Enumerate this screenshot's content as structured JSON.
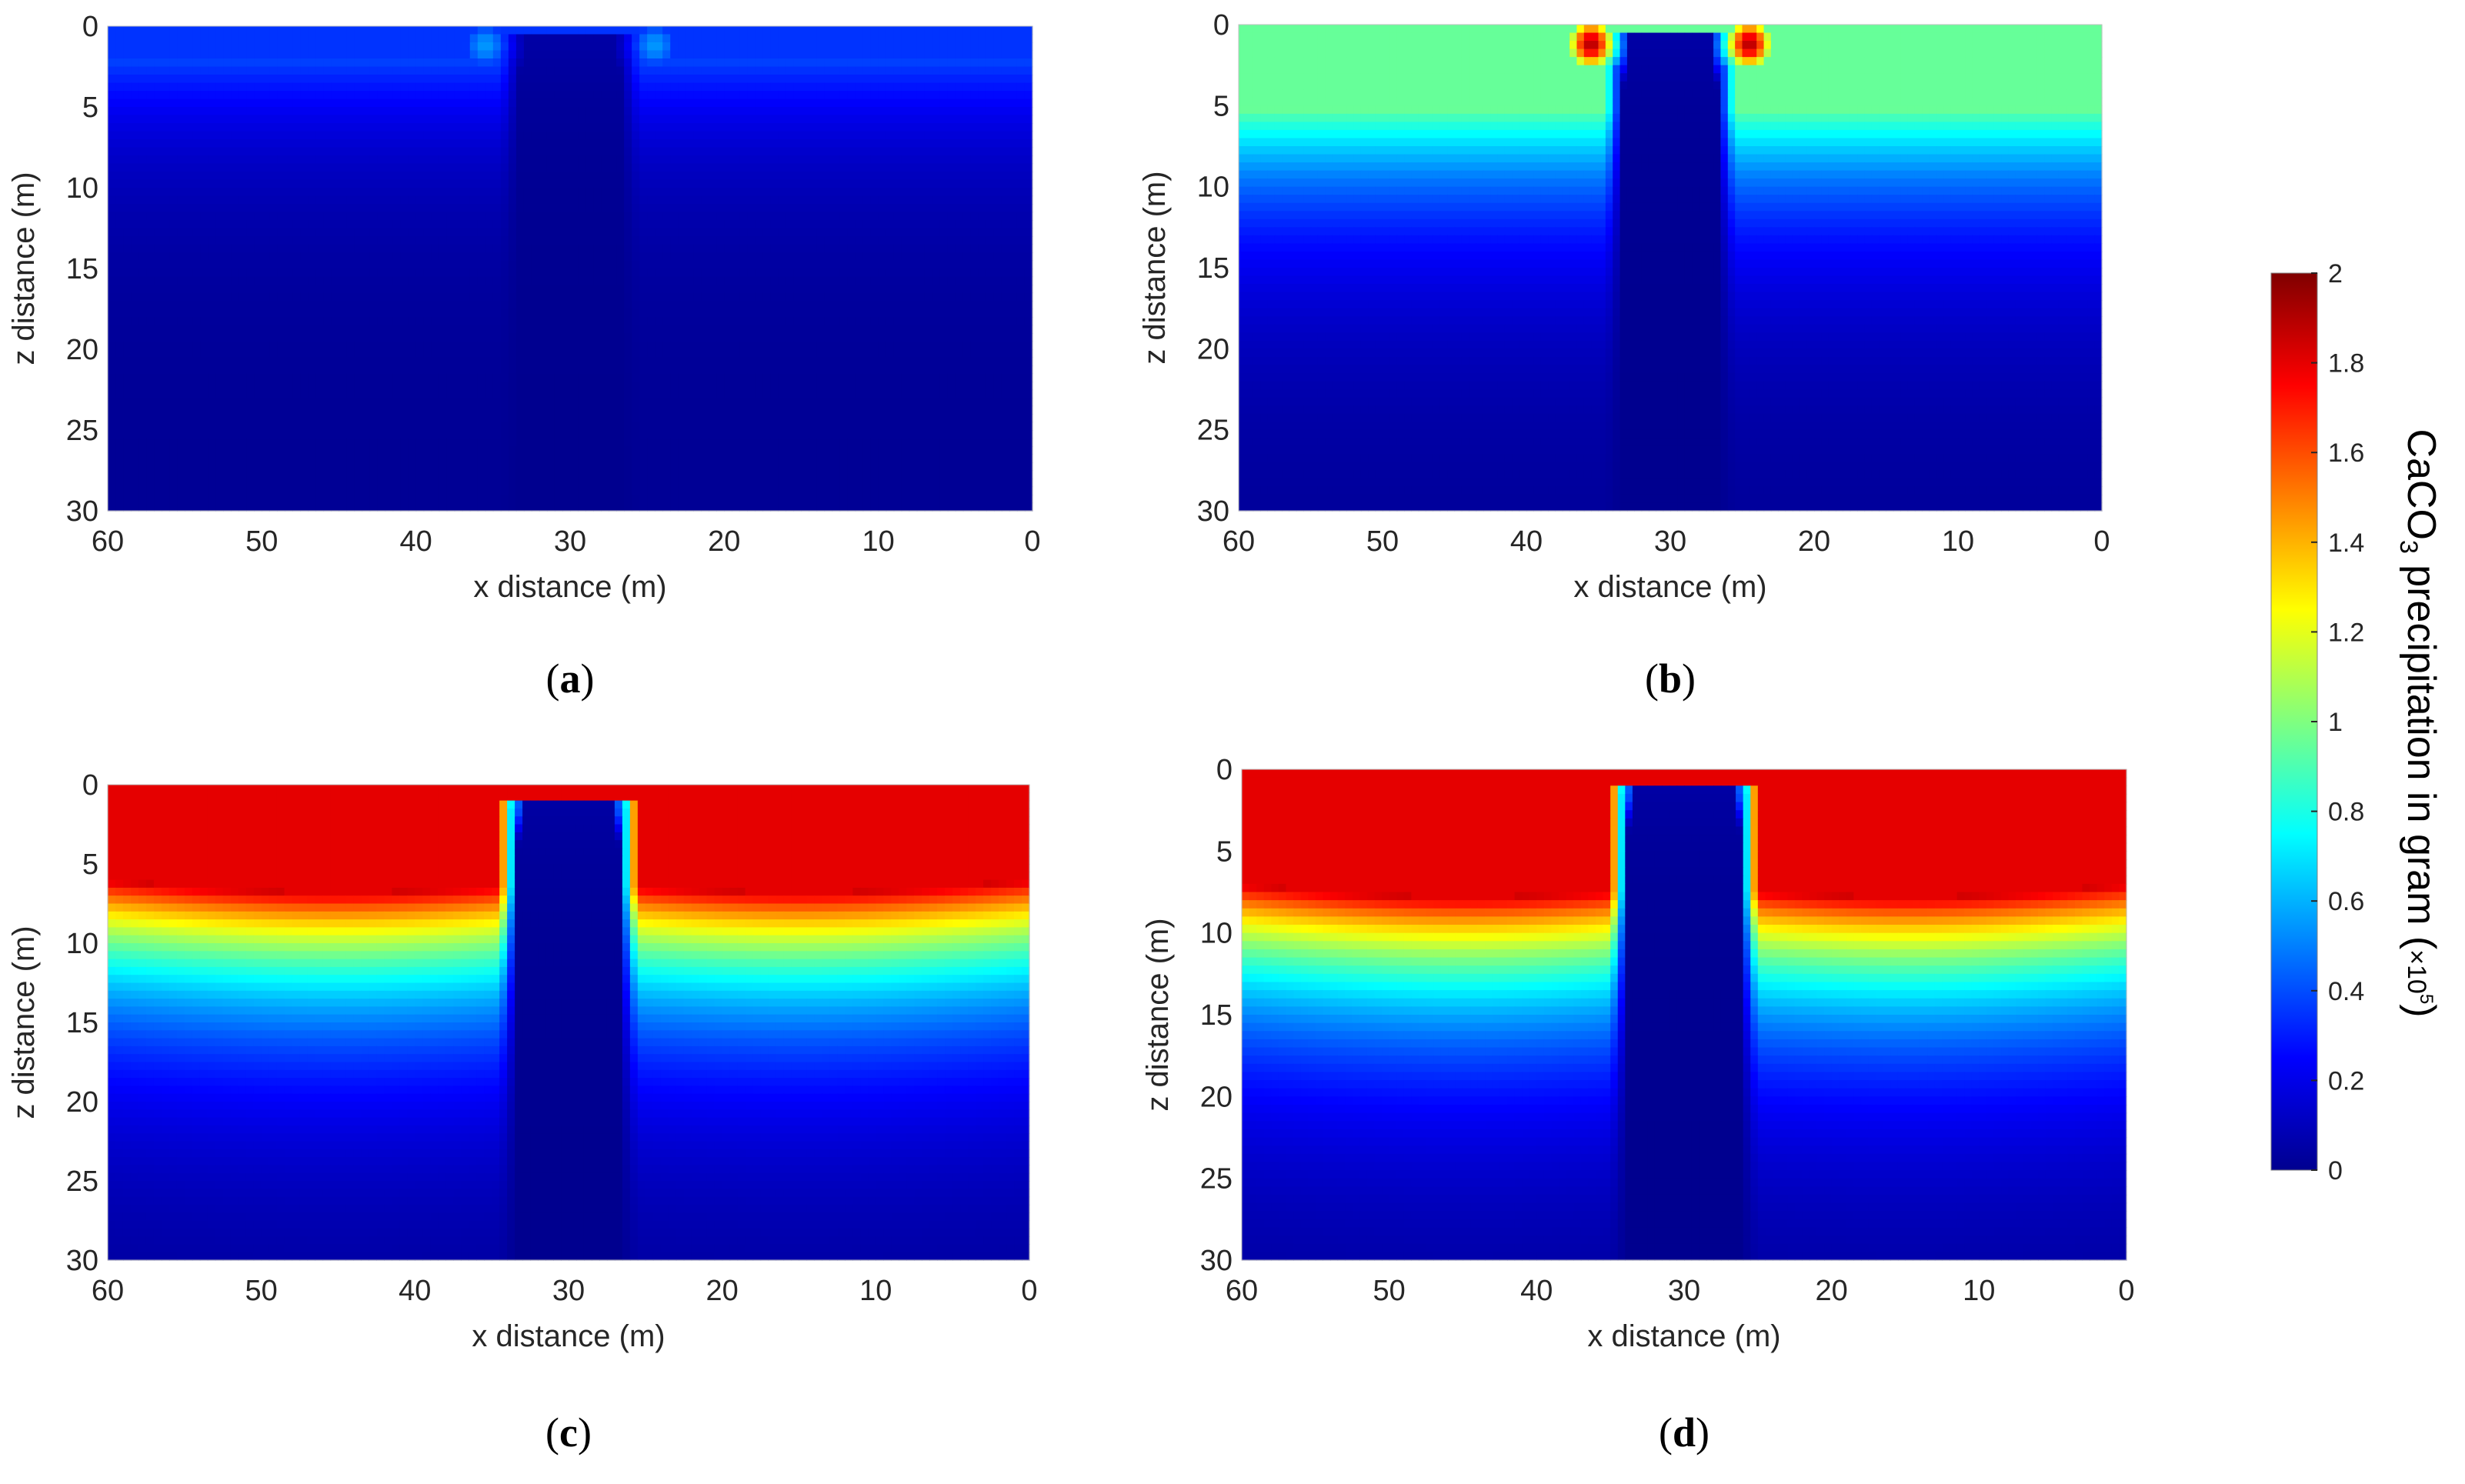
{
  "figure": {
    "colorbar": {
      "title_main": "CaCO",
      "title_sub": "3",
      "title_rest": " precipitation in gram (",
      "title_mult": "×10",
      "title_exp": "5",
      "title_close": ")",
      "ticks": [
        "0",
        "0.2",
        "0.4",
        "0.6",
        "0.8",
        "1",
        "1.2",
        "1.4",
        "1.6",
        "1.8",
        "2"
      ],
      "range": [
        0,
        2
      ],
      "colormap": "jet"
    }
  },
  "chart_data": [
    {
      "type": "heatmap",
      "panel": "a",
      "panel_label_open": "(",
      "panel_label_letter": "a",
      "panel_label_close": ")",
      "xlabel": "x distance (m)",
      "ylabel": "z distance (m)",
      "xticks": [
        "60",
        "50",
        "40",
        "30",
        "20",
        "10",
        "0"
      ],
      "yticks": [
        "0",
        "5",
        "10",
        "15",
        "20",
        "25",
        "30"
      ],
      "xlim": [
        60,
        0
      ],
      "ylim": [
        0,
        30
      ],
      "surface_value": 0.35,
      "front_depth": 2,
      "front_width": 5,
      "central_column": {
        "x_min": 25.5,
        "x_max": 34.5,
        "top_depth": 0.5
      },
      "rim_value": 0.55
    },
    {
      "type": "heatmap",
      "panel": "b",
      "panel_label_open": "(",
      "panel_label_letter": "b",
      "panel_label_close": ")",
      "xlabel": "x distance (m)",
      "ylabel": "z distance (m)",
      "xticks": [
        "60",
        "50",
        "40",
        "30",
        "20",
        "10",
        "0"
      ],
      "yticks": [
        "0",
        "5",
        "10",
        "15",
        "20",
        "25",
        "30"
      ],
      "xlim": [
        60,
        0
      ],
      "ylim": [
        0,
        30
      ],
      "surface_value": 0.95,
      "front_depth": 5,
      "front_width": 6,
      "central_column": {
        "x_min": 25.5,
        "x_max": 34.5,
        "top_depth": 0.7
      },
      "rim_value": 1.9
    },
    {
      "type": "heatmap",
      "panel": "c",
      "panel_label_open": "(",
      "panel_label_letter": "c",
      "panel_label_close": ")",
      "xlabel": "x distance (m)",
      "ylabel": "z distance (m)",
      "xticks": [
        "60",
        "50",
        "40",
        "30",
        "20",
        "10",
        "0"
      ],
      "yticks": [
        "0",
        "5",
        "10",
        "15",
        "20",
        "25",
        "30"
      ],
      "xlim": [
        60,
        0
      ],
      "ylim": [
        0,
        30
      ],
      "surface_value": 1.8,
      "front_depth": 6,
      "front_width": 6,
      "central_column": {
        "x_min": 25.5,
        "x_max": 34.5,
        "top_depth": 1
      },
      "rim_value": 1.8
    },
    {
      "type": "heatmap",
      "panel": "d",
      "panel_label_open": "(",
      "panel_label_letter": "d",
      "panel_label_close": ")",
      "xlabel": "x distance (m)",
      "ylabel": "z distance (m)",
      "xticks": [
        "60",
        "50",
        "40",
        "30",
        "20",
        "10",
        "0"
      ],
      "yticks": [
        "0",
        "5",
        "10",
        "15",
        "20",
        "25",
        "30"
      ],
      "xlim": [
        60,
        0
      ],
      "ylim": [
        0,
        30
      ],
      "surface_value": 1.8,
      "front_depth": 7,
      "front_width": 6,
      "central_column": {
        "x_min": 25,
        "x_max": 35,
        "top_depth": 1
      },
      "rim_value": 1.8
    }
  ]
}
